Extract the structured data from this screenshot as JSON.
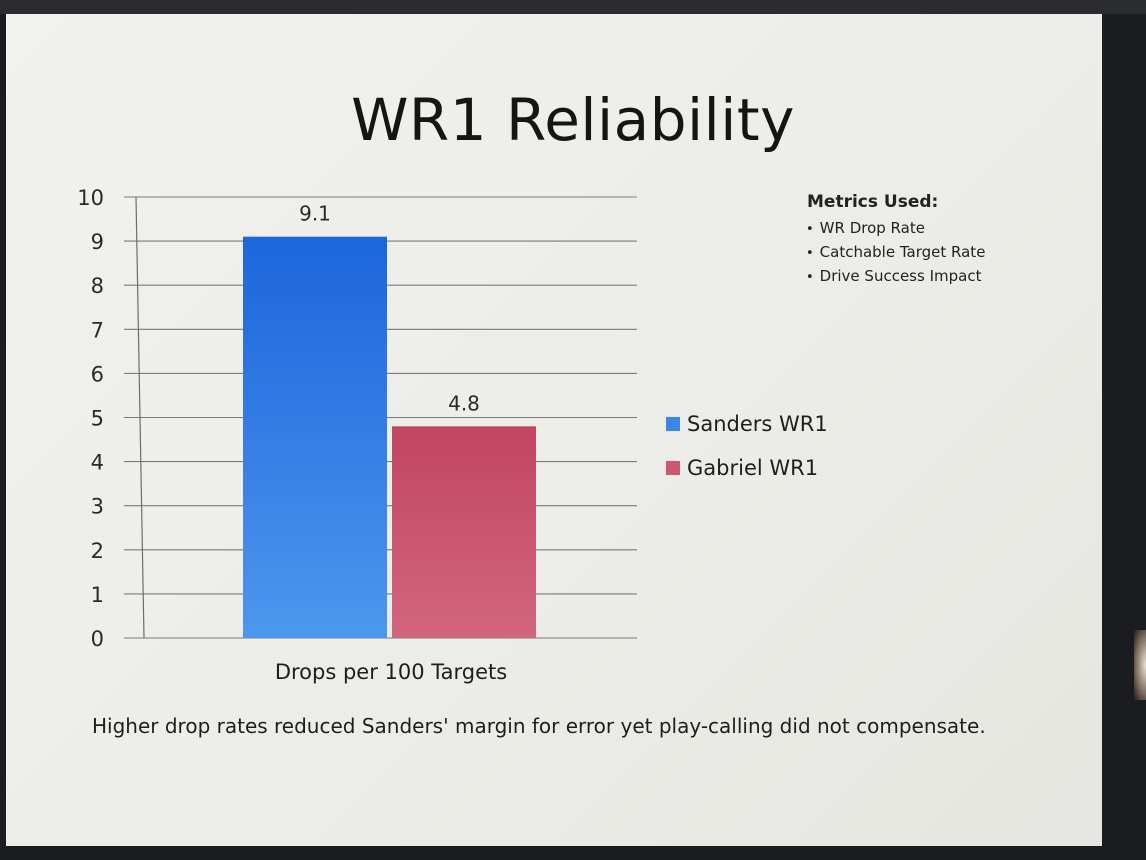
{
  "slide": {
    "title": "WR1 Reliability",
    "caption": "Higher drop rates reduced Sanders' margin for error yet play-calling did not compensate."
  },
  "metrics": {
    "title": "Metrics Used:",
    "items": [
      "WR Drop Rate",
      "Catchable Target Rate",
      "Drive Success Impact"
    ]
  },
  "chart_data": {
    "type": "bar",
    "title": "WR1 Reliability",
    "categories": [
      "Drops per 100 Targets"
    ],
    "xlabel": "Drops per 100 Targets",
    "ylabel": "",
    "ylim": [
      0,
      10
    ],
    "yticks": [
      0,
      1,
      2,
      3,
      4,
      5,
      6,
      7,
      8,
      9,
      10
    ],
    "grid": true,
    "legend_position": "right",
    "series": [
      {
        "name": "Sanders WR1",
        "values": [
          9.1
        ],
        "color": "#3a86e6"
      },
      {
        "name": "Gabriel WR1",
        "values": [
          4.8
        ],
        "color": "#cc5870"
      }
    ]
  }
}
